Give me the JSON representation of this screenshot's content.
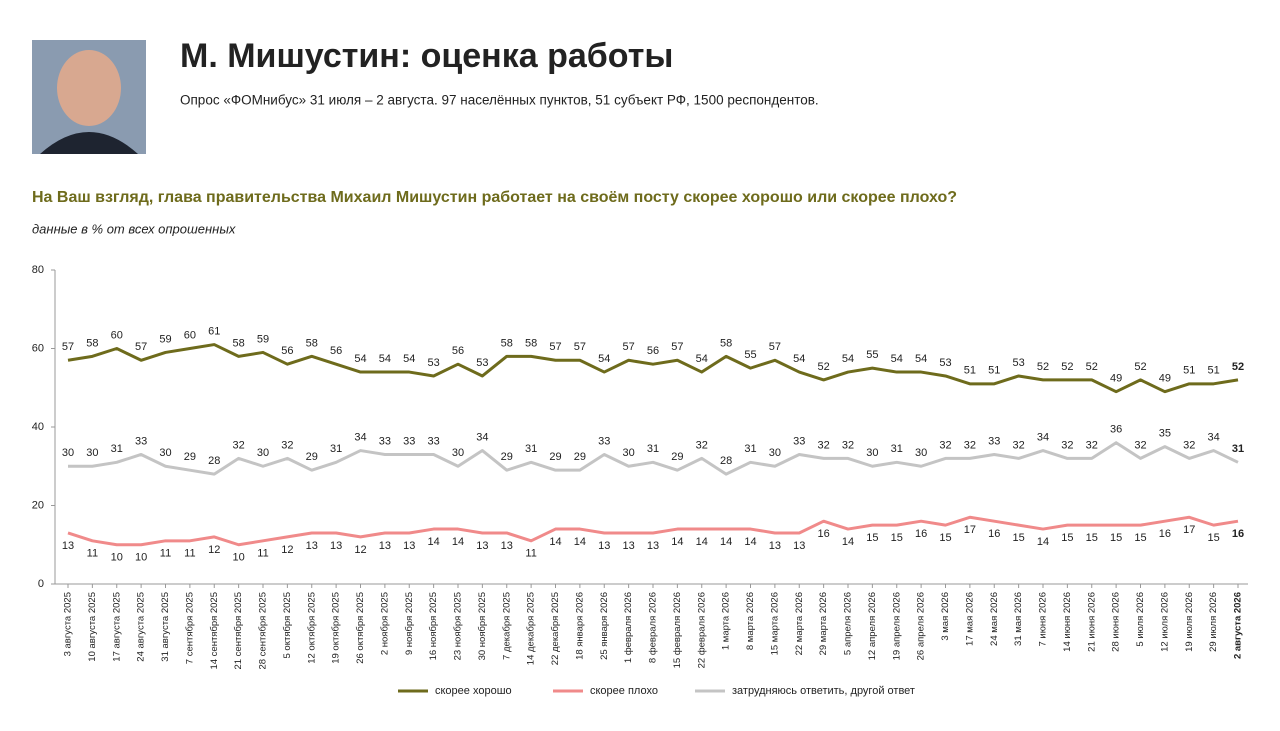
{
  "header": {
    "title": "М. Мишустин: оценка работы",
    "subtitle": "Опрос «ФОМнибус» 31 июля – 2 августа. 97 населённых пунктов, 51 субъект РФ, 1500 респондентов."
  },
  "chart_data": {
    "type": "line",
    "title": "На Ваш взгляд, глава правительства Михаил Мишустин работает на своём посту скорее хорошо или скорее плохо?",
    "subtitle": "данные в % от всех опрошенных",
    "categories": [
      "3 августа 2025",
      "10 августа 2025",
      "17 августа 2025",
      "24 августа 2025",
      "31 августа 2025",
      "7 сентября 2025",
      "14 сентября 2025",
      "21 сентября 2025",
      "28 сентября 2025",
      "5 октября 2025",
      "12 октября 2025",
      "19 октября 2025",
      "26 октября 2025",
      "2 ноября 2025",
      "9 ноября 2025",
      "16 ноября 2025",
      "23 ноября 2025",
      "30 ноября 2025",
      "7 декабря 2025",
      "14 декабря 2025",
      "22 декабря 2025",
      "18 января 2026",
      "25 января 2026",
      "1 февраля 2026",
      "8 февраля 2026",
      "15 февраля 2026",
      "22 февраля 2026",
      "1 марта 2026",
      "8 марта 2026",
      "15 марта 2026",
      "22 марта 2026",
      "29 марта 2026",
      "5 апреля 2026",
      "12 апреля 2026",
      "19 апреля 2026",
      "26 апреля 2026",
      "3 мая 2026",
      "17 мая 2026",
      "24 мая 2026",
      "31 мая 2026",
      "7 июня 2026",
      "14 июня 2026",
      "21 июня 2026",
      "28 июня 2026",
      "5 июля 2026",
      "12 июля 2026",
      "19 июля 2026",
      "29 июля 2026",
      "2 августа 2026"
    ],
    "series": [
      {
        "name": "скорее хорошо",
        "color": "#6e6b1c",
        "values": [
          57,
          58,
          60,
          57,
          59,
          60,
          61,
          58,
          59,
          56,
          58,
          56,
          54,
          54,
          54,
          53,
          56,
          53,
          58,
          58,
          57,
          57,
          54,
          57,
          56,
          57,
          54,
          58,
          55,
          57,
          54,
          52,
          54,
          55,
          54,
          54,
          53,
          51,
          51,
          53,
          52,
          52,
          52,
          49,
          52,
          49,
          51,
          51,
          52
        ]
      },
      {
        "name": "скорее плохо",
        "color": "#f08a8a",
        "values": [
          13,
          11,
          10,
          10,
          11,
          11,
          12,
          10,
          11,
          12,
          13,
          13,
          12,
          13,
          13,
          14,
          14,
          13,
          13,
          11,
          14,
          14,
          13,
          13,
          13,
          14,
          14,
          14,
          14,
          13,
          13,
          16,
          14,
          15,
          15,
          16,
          15,
          17,
          16,
          15,
          14,
          15,
          15,
          15,
          15,
          16,
          17,
          15,
          16
        ]
      },
      {
        "name": "затрудняюсь ответить, другой ответ",
        "color": "#c4c4c4",
        "values": [
          30,
          30,
          31,
          33,
          30,
          29,
          28,
          32,
          30,
          32,
          29,
          31,
          34,
          33,
          33,
          33,
          30,
          34,
          29,
          31,
          29,
          29,
          33,
          30,
          31,
          29,
          32,
          28,
          31,
          30,
          33,
          32,
          32,
          30,
          31,
          30,
          32,
          32,
          33,
          32,
          34,
          32,
          32,
          36,
          32,
          35,
          32,
          34,
          31
        ]
      }
    ],
    "ylim": [
      0,
      80
    ],
    "yticks": [
      0,
      20,
      40,
      60,
      80
    ]
  }
}
